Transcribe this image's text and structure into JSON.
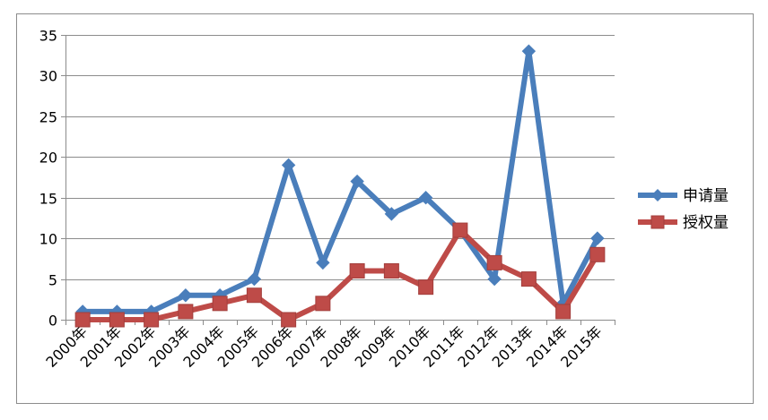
{
  "chart_data": {
    "type": "line",
    "title": "",
    "xlabel": "",
    "ylabel": "",
    "categories": [
      "2000年",
      "2001年",
      "2002年",
      "2003年",
      "2004年",
      "2005年",
      "2006年",
      "2007年",
      "2008年",
      "2009年",
      "2010年",
      "2011年",
      "2012年",
      "2013年",
      "2014年",
      "2015年"
    ],
    "ylim": [
      0,
      35
    ],
    "yticks": [
      0,
      5,
      10,
      15,
      20,
      25,
      30,
      35
    ],
    "grid": true,
    "legend_position": "right",
    "series": [
      {
        "name": "申请量",
        "color": "#4a7ebb",
        "marker": "diamond",
        "values": [
          1,
          1,
          1,
          3,
          3,
          5,
          19,
          7,
          17,
          13,
          15,
          11,
          5,
          33,
          2,
          10
        ]
      },
      {
        "name": "授权量",
        "color": "#be4b48",
        "marker": "square",
        "values": [
          0,
          0,
          0,
          1,
          2,
          3,
          0,
          2,
          6,
          6,
          4,
          11,
          7,
          5,
          1,
          8
        ]
      }
    ]
  }
}
